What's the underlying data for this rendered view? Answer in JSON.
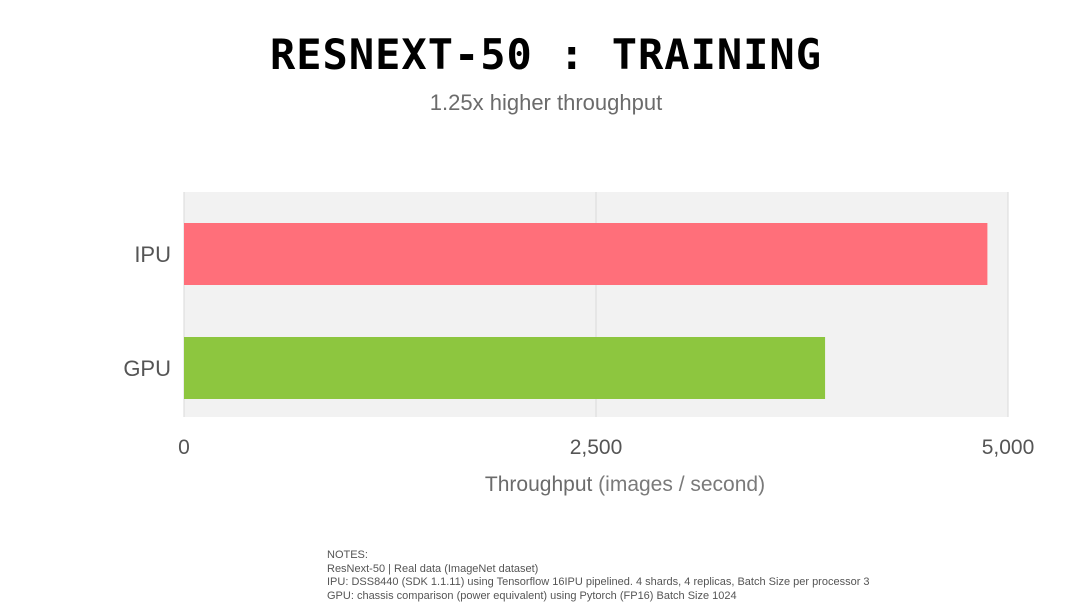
{
  "title": "RESNEXT-50 : TRAINING",
  "subtitle": "1.25x higher throughput",
  "colors": {
    "IPU": "#ff6f7a",
    "GPU": "#8dc63f",
    "plot_bg": "#f2f2f2",
    "grid": "#d9d9d9"
  },
  "chart_data": {
    "type": "bar",
    "orientation": "horizontal",
    "categories": [
      "IPU",
      "GPU"
    ],
    "values": [
      4875,
      3890
    ],
    "xlabel": "Throughput",
    "xlabel_unit": "(images / second)",
    "xlim": [
      0,
      5000
    ],
    "xticks": [
      0,
      2500,
      5000
    ],
    "xtick_labels": [
      "0",
      "2,500",
      "5,000"
    ],
    "grid": true,
    "legend": "none"
  },
  "notes": {
    "heading": "NOTES:",
    "lines": [
      "ResNext-50 | Real data (ImageNet dataset)",
      "IPU: DSS8440 (SDK 1.1.11) using Tensorflow  16IPU pipelined. 4 shards, 4 replicas, Batch Size per processor 3",
      "GPU: chassis comparison (power equivalent) using Pytorch (FP16) Batch Size 1024"
    ]
  }
}
